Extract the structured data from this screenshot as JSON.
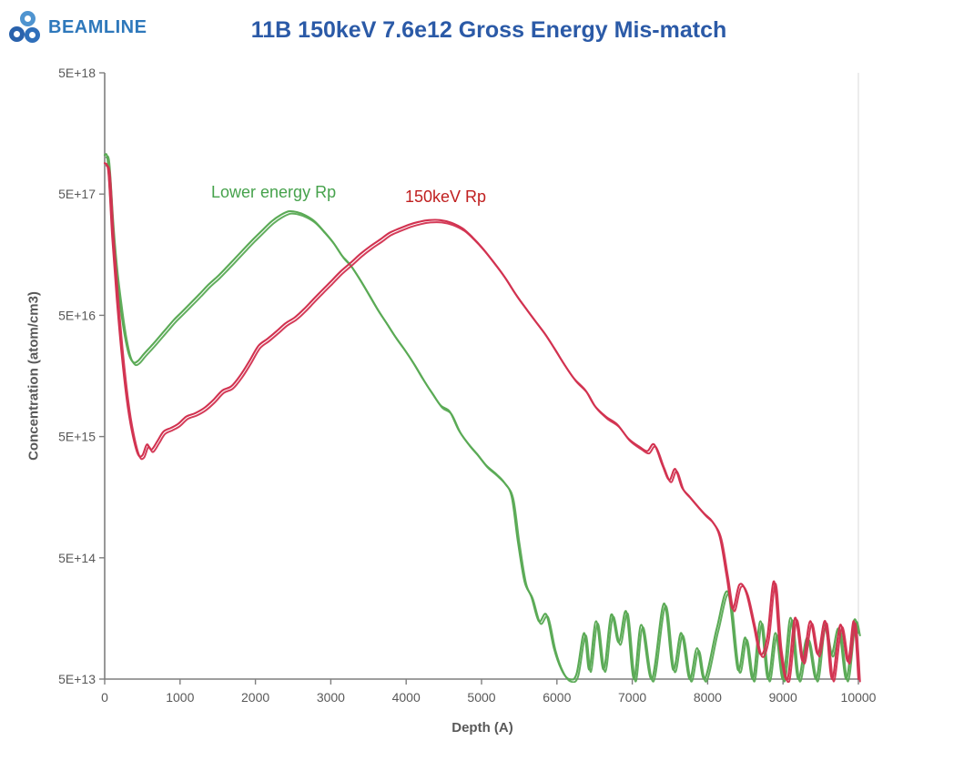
{
  "logo": {
    "brand": "BEAMLINE",
    "icon": "three-circles-cluster",
    "brand_color": "#2e78bb"
  },
  "title": "11B 150keV 7.6e12 Gross Energy Mis-match",
  "colors": {
    "title_color": "#2b5aa7",
    "axis_color": "#7f7f7f",
    "tick_label_color": "#595959",
    "plot_right_border": "#d9d9d9",
    "green_series": "#5aaa55",
    "red_series": "#d23250",
    "green_label": "#46a24c",
    "red_label": "#c02020"
  },
  "chart_data": {
    "type": "line",
    "title": "11B 150keV 7.6e12 Gross Energy Mis-match",
    "xlabel": "Depth (A)",
    "ylabel": "Concentration (atom/cm3)",
    "xlim": [
      0,
      10000
    ],
    "ylim": [
      50000000000000.0,
      5e+18
    ],
    "y_scale": "log",
    "grid": false,
    "legend_position": "in-plot-annotations",
    "x_ticks": {
      "values": [
        0,
        1000,
        2000,
        3000,
        4000,
        5000,
        6000,
        7000,
        8000,
        9000,
        10000
      ],
      "labels": [
        "0",
        "1000",
        "2000",
        "3000",
        "4000",
        "5000",
        "6000",
        "7000",
        "8000",
        "9000",
        "10000"
      ]
    },
    "y_ticks": {
      "values": [
        5e+18,
        5e+17,
        5e+16,
        5000000000000000.0,
        500000000000000.0,
        50000000000000.0
      ],
      "labels": [
        "5E+18",
        "5E+17",
        "5E+16",
        "5E+15",
        "5E+14",
        "5E+13"
      ]
    },
    "annotations": [
      {
        "text": "Lower energy Rp",
        "color": "#46a24c",
        "near_depth": 2400,
        "near_conc": 5.5e+17
      },
      {
        "text": "150keV Rp",
        "color": "#c02020",
        "near_depth": 4300,
        "near_conc": 5e+17
      }
    ],
    "series": [
      {
        "name": "Lower energy Rp",
        "color": "#5aaa55",
        "traces": 2,
        "points": [
          [
            0,
            1.05e+18
          ],
          [
            40,
            9.5e+17
          ],
          [
            90,
            3.2e+17
          ],
          [
            140,
            1.35e+17
          ],
          [
            200,
            6.5e+16
          ],
          [
            260,
            3.6e+16
          ],
          [
            320,
            2.4e+16
          ],
          [
            380,
            2.05e+16
          ],
          [
            440,
            2.1e+16
          ],
          [
            520,
            2.4e+16
          ],
          [
            620,
            2.8e+16
          ],
          [
            720,
            3.3e+16
          ],
          [
            820,
            3.9e+16
          ],
          [
            920,
            4.6e+16
          ],
          [
            1020,
            5.3e+16
          ],
          [
            1140,
            6.3e+16
          ],
          [
            1260,
            7.5e+16
          ],
          [
            1380,
            9e+16
          ],
          [
            1500,
            1.05e+17
          ],
          [
            1620,
            1.25e+17
          ],
          [
            1740,
            1.5e+17
          ],
          [
            1860,
            1.8e+17
          ],
          [
            1980,
            2.15e+17
          ],
          [
            2100,
            2.55e+17
          ],
          [
            2220,
            3e+17
          ],
          [
            2330,
            3.35e+17
          ],
          [
            2440,
            3.6e+17
          ],
          [
            2550,
            3.55e+17
          ],
          [
            2660,
            3.35e+17
          ],
          [
            2780,
            3e+17
          ],
          [
            2900,
            2.5e+17
          ],
          [
            3030,
            2e+17
          ],
          [
            3150,
            1.55e+17
          ],
          [
            3260,
            1.3e+17
          ],
          [
            3380,
            1e+17
          ],
          [
            3500,
            7.5e+16
          ],
          [
            3620,
            5.6e+16
          ],
          [
            3740,
            4.3e+16
          ],
          [
            3860,
            3.3e+16
          ],
          [
            3980,
            2.6e+16
          ],
          [
            4100,
            2e+16
          ],
          [
            4220,
            1.5e+16
          ],
          [
            4340,
            1.15e+16
          ],
          [
            4460,
            9000000000000000.0
          ],
          [
            4580,
            8000000000000000.0
          ],
          [
            4700,
            5600000000000000.0
          ],
          [
            4820,
            4400000000000000.0
          ],
          [
            4940,
            3600000000000000.0
          ],
          [
            5060,
            2900000000000000.0
          ],
          [
            5180,
            2500000000000000.0
          ],
          [
            5300,
            2100000000000000.0
          ],
          [
            5400,
            1600000000000000.0
          ],
          [
            5480,
            700000000000000.0
          ],
          [
            5570,
            320000000000000.0
          ],
          [
            5660,
            240000000000000.0
          ],
          [
            5760,
            150000000000000.0
          ],
          [
            5860,
            170000000000000.0
          ],
          [
            5960,
            90000000000000.0
          ],
          [
            6060,
            60000000000000.0
          ],
          [
            6160,
            50000000000000.0
          ],
          [
            6260,
            55000000000000.0
          ],
          [
            6360,
            120000000000000.0
          ],
          [
            6430,
            60000000000000.0
          ],
          [
            6520,
            150000000000000.0
          ],
          [
            6620,
            60000000000000.0
          ],
          [
            6720,
            170000000000000.0
          ],
          [
            6820,
            100000000000000.0
          ],
          [
            6920,
            180000000000000.0
          ],
          [
            7020,
            50000000000000.0
          ],
          [
            7120,
            140000000000000.0
          ],
          [
            7260,
            50000000000000.0
          ],
          [
            7420,
            210000000000000.0
          ],
          [
            7540,
            60000000000000.0
          ],
          [
            7650,
            120000000000000.0
          ],
          [
            7760,
            50000000000000.0
          ],
          [
            7860,
            90000000000000.0
          ],
          [
            7960,
            50000000000000.0
          ],
          [
            8120,
            130000000000000.0
          ],
          [
            8270,
            260000000000000.0
          ],
          [
            8400,
            60000000000000.0
          ],
          [
            8500,
            110000000000000.0
          ],
          [
            8600,
            50000000000000.0
          ],
          [
            8700,
            150000000000000.0
          ],
          [
            8800,
            50000000000000.0
          ],
          [
            8900,
            120000000000000.0
          ],
          [
            9000,
            50000000000000.0
          ],
          [
            9100,
            160000000000000.0
          ],
          [
            9200,
            50000000000000.0
          ],
          [
            9320,
            110000000000000.0
          ],
          [
            9440,
            50000000000000.0
          ],
          [
            9540,
            140000000000000.0
          ],
          [
            9640,
            80000000000000.0
          ],
          [
            9740,
            130000000000000.0
          ],
          [
            9840,
            50000000000000.0
          ],
          [
            9940,
            150000000000000.0
          ],
          [
            10000,
            120000000000000.0
          ]
        ]
      },
      {
        "name": "150keV Rp",
        "color": "#d23250",
        "traces": 2,
        "points": [
          [
            0,
            9e+17
          ],
          [
            50,
            7.5e+17
          ],
          [
            100,
            2.2e+17
          ],
          [
            160,
            7e+16
          ],
          [
            220,
            2.6e+16
          ],
          [
            290,
            1.05e+16
          ],
          [
            360,
            5600000000000000.0
          ],
          [
            440,
            3600000000000000.0
          ],
          [
            500,
            3500000000000000.0
          ],
          [
            560,
            4300000000000000.0
          ],
          [
            620,
            3900000000000000.0
          ],
          [
            700,
            4600000000000000.0
          ],
          [
            780,
            5500000000000000.0
          ],
          [
            880,
            5900000000000000.0
          ],
          [
            980,
            6400000000000000.0
          ],
          [
            1080,
            7300000000000000.0
          ],
          [
            1200,
            7800000000000000.0
          ],
          [
            1320,
            8600000000000000.0
          ],
          [
            1440,
            1e+16
          ],
          [
            1560,
            1.2e+16
          ],
          [
            1680,
            1.3e+16
          ],
          [
            1800,
            1.6e+16
          ],
          [
            1920,
            2.1e+16
          ],
          [
            2040,
            2.8e+16
          ],
          [
            2160,
            3.2e+16
          ],
          [
            2280,
            3.7e+16
          ],
          [
            2400,
            4.3e+16
          ],
          [
            2520,
            4.8e+16
          ],
          [
            2640,
            5.6e+16
          ],
          [
            2760,
            6.7e+16
          ],
          [
            2880,
            8e+16
          ],
          [
            3000,
            9.5e+16
          ],
          [
            3130,
            1.15e+17
          ],
          [
            3260,
            1.35e+17
          ],
          [
            3390,
            1.6e+17
          ],
          [
            3520,
            1.85e+17
          ],
          [
            3650,
            2.1e+17
          ],
          [
            3780,
            2.4e+17
          ],
          [
            3910,
            2.6e+17
          ],
          [
            4040,
            2.8e+17
          ],
          [
            4170,
            2.95e+17
          ],
          [
            4300,
            3.05e+17
          ],
          [
            4450,
            3.05e+17
          ],
          [
            4600,
            2.9e+17
          ],
          [
            4750,
            2.6e+17
          ],
          [
            4880,
            2.2e+17
          ],
          [
            5010,
            1.8e+17
          ],
          [
            5150,
            1.4e+17
          ],
          [
            5300,
            1.05e+17
          ],
          [
            5450,
            7.5e+16
          ],
          [
            5580,
            5.8e+16
          ],
          [
            5700,
            4.6e+16
          ],
          [
            5830,
            3.6e+16
          ],
          [
            5960,
            2.7e+16
          ],
          [
            6090,
            2e+16
          ],
          [
            6230,
            1.5e+16
          ],
          [
            6380,
            1.2e+16
          ],
          [
            6500,
            9000000000000000.0
          ],
          [
            6650,
            7300000000000000.0
          ],
          [
            6800,
            6300000000000000.0
          ],
          [
            6950,
            4800000000000000.0
          ],
          [
            7100,
            4100000000000000.0
          ],
          [
            7200,
            3800000000000000.0
          ],
          [
            7290,
            4300000000000000.0
          ],
          [
            7400,
            2900000000000000.0
          ],
          [
            7490,
            2200000000000000.0
          ],
          [
            7570,
            2700000000000000.0
          ],
          [
            7660,
            1900000000000000.0
          ],
          [
            7760,
            1600000000000000.0
          ],
          [
            7860,
            1350000000000000.0
          ],
          [
            7960,
            1150000000000000.0
          ],
          [
            8060,
            1000000000000000.0
          ],
          [
            8160,
            750000000000000.0
          ],
          [
            8250,
            360000000000000.0
          ],
          [
            8330,
            190000000000000.0
          ],
          [
            8420,
            300000000000000.0
          ],
          [
            8510,
            260000000000000.0
          ],
          [
            8610,
            140000000000000.0
          ],
          [
            8700,
            80000000000000.0
          ],
          [
            8790,
            110000000000000.0
          ],
          [
            8880,
            320000000000000.0
          ],
          [
            8960,
            90000000000000.0
          ],
          [
            9060,
            50000000000000.0
          ],
          [
            9160,
            160000000000000.0
          ],
          [
            9260,
            70000000000000.0
          ],
          [
            9360,
            150000000000000.0
          ],
          [
            9460,
            80000000000000.0
          ],
          [
            9560,
            150000000000000.0
          ],
          [
            9650,
            50000000000000.0
          ],
          [
            9760,
            140000000000000.0
          ],
          [
            9860,
            70000000000000.0
          ],
          [
            9940,
            150000000000000.0
          ],
          [
            10000,
            50000000000000.0
          ]
        ]
      }
    ]
  }
}
